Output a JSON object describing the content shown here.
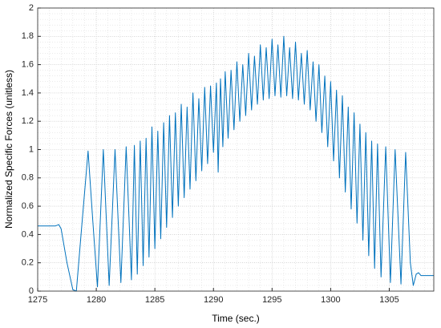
{
  "chart_data": {
    "type": "line",
    "xlabel": "Time (sec.)",
    "ylabel": "Normalized Specific Forces (unitless)",
    "color": "#0072bd",
    "xlim": [
      1275,
      1308.8
    ],
    "xticks": [
      1275,
      1280,
      1285,
      1290,
      1295,
      1300,
      1305
    ],
    "ylim": [
      0,
      2
    ],
    "yticks": [
      0,
      0.2,
      0.4,
      0.6,
      0.8,
      1,
      1.2,
      1.4,
      1.6,
      1.8,
      2
    ],
    "grid": true,
    "minor_grid": true,
    "x": [
      1275,
      1276.5,
      1276.8,
      1277,
      1277.5,
      1278,
      1278.3,
      1278.7,
      1279.3,
      1279.7,
      1280.1,
      1280.6,
      1281.1,
      1281.6,
      1282.1,
      1282.55,
      1283,
      1283.25,
      1283.5,
      1283.75,
      1284,
      1284.25,
      1284.5,
      1284.75,
      1285,
      1285.25,
      1285.5,
      1285.75,
      1286,
      1286.25,
      1286.5,
      1286.75,
      1287,
      1287.25,
      1287.5,
      1287.75,
      1288,
      1288.25,
      1288.5,
      1288.75,
      1289,
      1289.25,
      1289.5,
      1289.75,
      1290,
      1290.25,
      1290.4,
      1290.6,
      1290.8,
      1291,
      1291.25,
      1291.5,
      1291.75,
      1292,
      1292.25,
      1292.5,
      1292.75,
      1293,
      1293.25,
      1293.5,
      1293.75,
      1294,
      1294.25,
      1294.5,
      1294.75,
      1295,
      1295.25,
      1295.5,
      1295.75,
      1296,
      1296.25,
      1296.5,
      1296.75,
      1297,
      1297.25,
      1297.5,
      1297.75,
      1298,
      1298.25,
      1298.5,
      1298.75,
      1299,
      1299.25,
      1299.5,
      1299.75,
      1300,
      1300.25,
      1300.5,
      1300.75,
      1301,
      1301.25,
      1301.5,
      1301.75,
      1302,
      1302.25,
      1302.5,
      1302.75,
      1303,
      1303.25,
      1303.5,
      1303.75,
      1304,
      1304.3,
      1304.7,
      1305.1,
      1305.5,
      1306,
      1306.4,
      1306.8,
      1307.05,
      1307.3,
      1307.5,
      1307.7,
      1308.8
    ],
    "values": [
      0.46,
      0.46,
      0.47,
      0.44,
      0.2,
      0.01,
      0,
      0.4,
      0.99,
      0.5,
      0.03,
      1,
      0.04,
      1,
      0.06,
      1.02,
      0.08,
      1.03,
      0.12,
      1.06,
      0.18,
      1.08,
      0.24,
      1.16,
      0.3,
      1.13,
      0.37,
      1.19,
      0.45,
      1.24,
      0.52,
      1.26,
      0.6,
      1.32,
      0.66,
      1.3,
      0.72,
      1.4,
      0.78,
      1.36,
      0.85,
      1.44,
      0.9,
      1.45,
      0.98,
      1.47,
      0.84,
      1.5,
      1.02,
      1.55,
      1.08,
      1.56,
      1.14,
      1.62,
      1.2,
      1.6,
      1.24,
      1.68,
      1.28,
      1.66,
      1.32,
      1.74,
      1.35,
      1.72,
      1.36,
      1.78,
      1.38,
      1.74,
      1.37,
      1.8,
      1.38,
      1.72,
      1.36,
      1.76,
      1.35,
      1.68,
      1.32,
      1.7,
      1.28,
      1.62,
      1.2,
      1.6,
      1.12,
      1.52,
      1.02,
      1.48,
      0.92,
      1.42,
      0.8,
      1.38,
      0.7,
      1.3,
      0.58,
      1.26,
      0.48,
      1.18,
      0.36,
      1.12,
      0.25,
      1.06,
      0.16,
      1.04,
      0.1,
      1.02,
      0.06,
      1,
      0.05,
      0.98,
      0.2,
      0.04,
      0.12,
      0.13,
      0.11,
      0.11
    ]
  }
}
